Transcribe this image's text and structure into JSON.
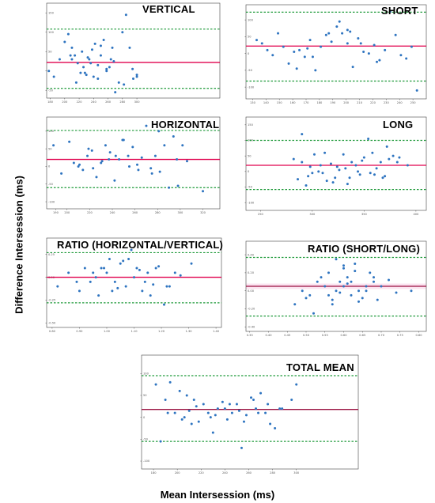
{
  "figure": {
    "ylabel": "Difference Intersession (ms)",
    "xlabel": "Mean Intersession (ms)"
  },
  "colors": {
    "points": "#2e74c0",
    "mean_line": "#e0004d",
    "loa_line": "#1f9a3a",
    "frame": "#444444",
    "band": "#fbe3f0"
  },
  "chart_data": [
    {
      "type": "scatter",
      "title": "VERTICAL",
      "xlim": [
        175,
        415
      ],
      "ylim": [
        -70,
        175
      ],
      "xticks": [
        "180",
        "200",
        "220",
        "240",
        "260",
        "280",
        "300"
      ],
      "xtick_values": [
        180,
        200,
        220,
        240,
        260,
        280,
        300
      ],
      "yticks": [
        "-50",
        "0",
        "50",
        "100",
        "150"
      ],
      "ytick_values": [
        -50,
        0,
        50,
        100,
        150
      ],
      "mean": 22,
      "loa_upper": 108,
      "loa_lower": -45,
      "x": [
        178,
        185,
        193,
        200,
        205,
        210,
        214,
        218,
        222,
        226,
        230,
        234,
        238,
        242,
        246,
        250,
        254,
        258,
        262,
        266,
        270,
        275,
        280,
        285,
        290,
        295,
        300,
        246,
        232,
        224,
        216,
        208,
        258,
        268,
        282,
        294,
        240,
        236,
        228,
        210,
        250,
        264,
        300
      ],
      "y": [
        0,
        -15,
        30,
        75,
        95,
        60,
        40,
        20,
        -5,
        10,
        -10,
        30,
        55,
        70,
        -20,
        40,
        80,
        0,
        10,
        60,
        -55,
        -30,
        100,
        145,
        60,
        -20,
        -15,
        15,
        35,
        50,
        -30,
        40,
        5,
        25,
        -35,
        5,
        -15,
        20,
        -5,
        30,
        65,
        30,
        -10
      ]
    },
    {
      "type": "scatter",
      "title": "SHORT",
      "xlim": [
        125,
        260
      ],
      "ylim": [
        -135,
        145
      ],
      "xticks": [
        "130",
        "140",
        "150",
        "160",
        "170",
        "180",
        "190",
        "200",
        "210",
        "220",
        "230",
        "240",
        "250"
      ],
      "xtick_values": [
        130,
        140,
        150,
        160,
        170,
        180,
        190,
        200,
        210,
        220,
        230,
        240,
        250
      ],
      "yticks": [
        "-100",
        "-50",
        "0",
        "50",
        "100"
      ],
      "ytick_values": [
        -100,
        -50,
        0,
        50,
        100
      ],
      "mean": 22,
      "loa_upper": 123,
      "loa_lower": -82,
      "x": [
        133,
        137,
        141,
        145,
        149,
        153,
        157,
        161,
        165,
        169,
        173,
        177,
        181,
        185,
        189,
        193,
        197,
        201,
        205,
        209,
        213,
        217,
        221,
        225,
        229,
        233,
        237,
        241,
        245,
        249,
        253,
        175,
        187,
        195,
        203,
        211,
        223,
        171,
        163,
        201
      ],
      "y": [
        40,
        30,
        10,
        -5,
        60,
        20,
        -30,
        5,
        10,
        -10,
        40,
        -50,
        20,
        55,
        35,
        80,
        60,
        30,
        -40,
        45,
        5,
        0,
        25,
        -20,
        10,
        125,
        55,
        -5,
        -15,
        20,
        -110,
        -10,
        60,
        95,
        65,
        30,
        -25,
        15,
        -45,
        70
      ]
    },
    {
      "type": "scatter",
      "title": "HORIZONTAL",
      "xlim": [
        182,
        335
      ],
      "ylim": [
        -120,
        140
      ],
      "xticks": [
        "190",
        "200",
        "220",
        "240",
        "260",
        "280",
        "300",
        "320"
      ],
      "xtick_values": [
        190,
        200,
        220,
        240,
        260,
        280,
        300,
        320
      ],
      "yticks": [
        "-100",
        "-50",
        "0",
        "50",
        "100"
      ],
      "ytick_values": [
        -100,
        -50,
        0,
        50,
        100
      ],
      "mean": 20,
      "loa_upper": 102,
      "loa_lower": -60,
      "x": [
        188,
        195,
        202,
        206,
        210,
        214,
        218,
        222,
        226,
        230,
        234,
        238,
        242,
        246,
        250,
        254,
        258,
        262,
        266,
        270,
        274,
        278,
        282,
        286,
        290,
        294,
        298,
        302,
        306,
        320,
        211,
        223,
        237,
        249,
        263,
        281,
        297,
        243,
        255,
        275,
        231,
        219
      ],
      "y": [
        60,
        -20,
        70,
        10,
        0,
        -10,
        30,
        45,
        -30,
        10,
        60,
        40,
        -40,
        20,
        75,
        30,
        55,
        5,
        25,
        115,
        -5,
        30,
        -15,
        60,
        -60,
        85,
        -55,
        60,
        15,
        -70,
        5,
        -5,
        20,
        75,
        -10,
        100,
        20,
        30,
        0,
        -20,
        15,
        50
      ]
    },
    {
      "type": "scatter",
      "title": "LONG",
      "xlim": [
        236,
        410
      ],
      "ylim": [
        -125,
        175
      ],
      "xticks": [
        "250",
        "300",
        "350",
        "400"
      ],
      "xtick_values": [
        250,
        300,
        350,
        400
      ],
      "yticks": [
        "-100",
        "-50",
        "0",
        "50",
        "100",
        "150"
      ],
      "ytick_values": [
        -100,
        -50,
        0,
        50,
        100,
        150
      ],
      "mean": 20,
      "loa_upper": 100,
      "loa_lower": -58,
      "x": [
        282,
        286,
        290,
        294,
        298,
        302,
        306,
        310,
        314,
        318,
        322,
        326,
        330,
        334,
        338,
        342,
        346,
        350,
        354,
        358,
        362,
        366,
        370,
        374,
        378,
        382,
        290,
        300,
        312,
        324,
        336,
        348,
        360,
        372,
        384,
        296,
        308,
        320,
        332,
        344,
        356,
        368,
        392
      ],
      "y": [
        40,
        -25,
        30,
        -45,
        15,
        55,
        0,
        -5,
        -30,
        25,
        -20,
        5,
        55,
        -40,
        30,
        20,
        -10,
        45,
        105,
        60,
        10,
        30,
        -15,
        40,
        50,
        30,
        120,
        -5,
        60,
        15,
        -20,
        35,
        -10,
        80,
        45,
        -15,
        20,
        -35,
        10,
        0,
        -5,
        -20,
        20
      ]
    },
    {
      "type": "scatter",
      "title": "RATIO (HORIZONTAL/VERTICAL)",
      "xlim": [
        0.78,
        1.42
      ],
      "ylim": [
        -0.55,
        0.43
      ],
      "xticks": [
        "0.80",
        "0.90",
        "1.00",
        "1.10",
        "1.20",
        "1.30",
        "1.40"
      ],
      "xtick_values": [
        0.8,
        0.9,
        1.0,
        1.1,
        1.2,
        1.3,
        1.4
      ],
      "yticks": [
        "-0.50",
        "-0.25",
        "0.00",
        "0.25"
      ],
      "ytick_values": [
        -0.5,
        -0.25,
        0,
        0.25
      ],
      "mean": 0.0,
      "loa_upper": 0.27,
      "loa_lower": -0.28,
      "x": [
        0.82,
        0.86,
        0.89,
        0.92,
        0.95,
        0.97,
        0.99,
        1.01,
        1.03,
        1.05,
        1.07,
        1.09,
        1.11,
        1.13,
        1.15,
        1.17,
        1.19,
        1.21,
        1.23,
        1.25,
        1.31,
        0.94,
        0.98,
        1.02,
        1.06,
        1.1,
        1.14,
        1.18,
        1.0,
        1.04,
        1.08,
        1.12,
        0.96,
        1.16,
        1.22,
        0.9,
        1.27
      ],
      "y": [
        -0.1,
        0.05,
        -0.05,
        0.1,
        0.05,
        -0.2,
        0.1,
        0.2,
        -0.05,
        0.15,
        -0.1,
        0.3,
        0.1,
        -0.15,
        0.05,
        -0.08,
        0.12,
        -0.3,
        -0.1,
        0.05,
        0.15,
        -0.05,
        0.1,
        -0.15,
        0.18,
        0.0,
        -0.05,
        0.1,
        0.05,
        -0.12,
        0.2,
        0.08,
        0.0,
        -0.2,
        -0.1,
        -0.15,
        0.02
      ]
    },
    {
      "type": "scatter",
      "title": "RATIO (SHORT/LONG)",
      "xlim": [
        0.34,
        0.82
      ],
      "ylim": [
        -0.45,
        0.55
      ],
      "xticks": [
        "0.35",
        "0.40",
        "0.45",
        "0.50",
        "0.55",
        "0.60",
        "0.65",
        "0.70",
        "0.75",
        "0.80"
      ],
      "xtick_values": [
        0.35,
        0.4,
        0.45,
        0.5,
        0.55,
        0.6,
        0.65,
        0.7,
        0.75,
        0.8
      ],
      "yticks": [
        "-0.40",
        "-0.20",
        "0.00",
        "0.20",
        "0.40"
      ],
      "ytick_values": [
        -0.4,
        -0.2,
        0,
        0.2,
        0.4
      ],
      "mean": 0.05,
      "loa_upper": 0.37,
      "loa_lower": -0.28,
      "x": [
        0.47,
        0.49,
        0.51,
        0.53,
        0.55,
        0.56,
        0.57,
        0.58,
        0.59,
        0.6,
        0.61,
        0.62,
        0.63,
        0.64,
        0.65,
        0.66,
        0.67,
        0.68,
        0.69,
        0.7,
        0.72,
        0.74,
        0.78,
        0.52,
        0.54,
        0.58,
        0.6,
        0.62,
        0.64,
        0.66,
        0.56,
        0.6,
        0.63,
        0.59,
        0.61,
        0.57,
        0.5,
        0.68
      ],
      "y": [
        -0.15,
        0.0,
        -0.05,
        0.1,
        0.05,
        0.2,
        -0.1,
        0.35,
        0.1,
        0.25,
        0.15,
        -0.05,
        0.22,
        0.0,
        -0.08,
        0.05,
        0.2,
        0.1,
        -0.1,
        0.05,
        0.12,
        -0.02,
        0.0,
        -0.25,
        0.15,
        0.0,
        0.28,
        0.1,
        -0.12,
        0.0,
        -0.05,
        0.05,
        0.3,
        -0.02,
        0.08,
        -0.15,
        -0.08,
        0.15
      ]
    },
    {
      "type": "scatter",
      "title": "TOTAL MEAN",
      "xlim": [
        170,
        352
      ],
      "ylim": [
        -118,
        142
      ],
      "xticks": [
        "180",
        "200",
        "220",
        "240",
        "260",
        "280",
        "300"
      ],
      "xtick_values": [
        180,
        200,
        220,
        240,
        260,
        280,
        300
      ],
      "yticks": [
        "-100",
        "-50",
        "0",
        "50",
        "100"
      ],
      "ytick_values": [
        -100,
        -50,
        0,
        50,
        100
      ],
      "mean": 18,
      "loa_upper": 95,
      "loa_lower": -55,
      "x": [
        182,
        186,
        190,
        194,
        198,
        202,
        206,
        210,
        214,
        218,
        222,
        226,
        230,
        234,
        238,
        242,
        246,
        250,
        254,
        258,
        262,
        266,
        270,
        274,
        278,
        282,
        286,
        192,
        204,
        216,
        228,
        240,
        252,
        264,
        276,
        288,
        208,
        232,
        244,
        256,
        268,
        212,
        300,
        296
      ],
      "y": [
        75,
        -55,
        40,
        80,
        10,
        60,
        0,
        15,
        40,
        -10,
        30,
        10,
        -35,
        20,
        35,
        -5,
        10,
        30,
        -70,
        5,
        45,
        20,
        55,
        10,
        -15,
        -25,
        20,
        10,
        -5,
        25,
        0,
        20,
        15,
        40,
        30,
        20,
        50,
        5,
        30,
        -10,
        10,
        -15,
        75,
        40
      ]
    }
  ]
}
